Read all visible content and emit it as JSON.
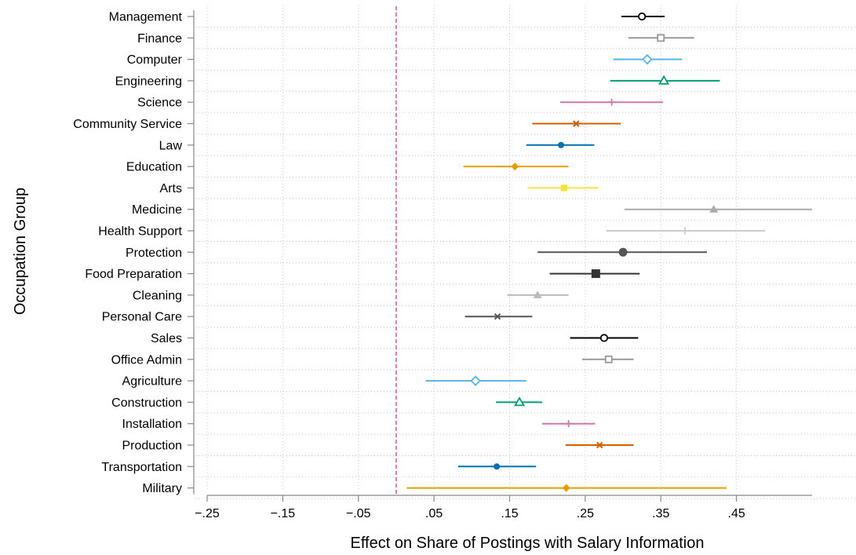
{
  "chart_data": {
    "type": "coefficient_plot",
    "xlabel": "Effect on Share of Postings with Salary Information",
    "ylabel": "Occupation Group",
    "xlim": [
      -0.25,
      0.55
    ],
    "x_ticks": [
      {
        "value": -0.25,
        "label": "−.25"
      },
      {
        "value": -0.15,
        "label": "−.15"
      },
      {
        "value": -0.05,
        "label": "−.05"
      },
      {
        "value": 0.05,
        "label": ".05"
      },
      {
        "value": 0.15,
        "label": ".15"
      },
      {
        "value": 0.25,
        "label": ".25"
      },
      {
        "value": 0.35,
        "label": ".35"
      },
      {
        "value": 0.45,
        "label": ".45"
      }
    ],
    "reference_line": {
      "x": 0,
      "color": "#d6609a",
      "style": "dashed"
    },
    "grid": true,
    "points": [
      {
        "category": "Management",
        "estimate": 0.325,
        "ci_low": 0.298,
        "ci_high": 0.355,
        "marker": "circle-open",
        "color": "#000000"
      },
      {
        "category": "Finance",
        "estimate": 0.35,
        "ci_low": 0.307,
        "ci_high": 0.394,
        "marker": "square-open",
        "color": "#999999"
      },
      {
        "category": "Computer",
        "estimate": 0.332,
        "ci_low": 0.287,
        "ci_high": 0.378,
        "marker": "diamond-open",
        "color": "#56b4e9"
      },
      {
        "category": "Engineering",
        "estimate": 0.354,
        "ci_low": 0.283,
        "ci_high": 0.428,
        "marker": "triangle-open",
        "color": "#009e73"
      },
      {
        "category": "Science",
        "estimate": 0.285,
        "ci_low": 0.217,
        "ci_high": 0.353,
        "marker": "plus",
        "color": "#cc79a7"
      },
      {
        "category": "Community Service",
        "estimate": 0.238,
        "ci_low": 0.18,
        "ci_high": 0.297,
        "marker": "x",
        "color": "#d55e00"
      },
      {
        "category": "Law",
        "estimate": 0.218,
        "ci_low": 0.172,
        "ci_high": 0.262,
        "marker": "circle-filled",
        "color": "#0072b2"
      },
      {
        "category": "Education",
        "estimate": 0.157,
        "ci_low": 0.089,
        "ci_high": 0.228,
        "marker": "diamond-filled",
        "color": "#e69f00"
      },
      {
        "category": "Arts",
        "estimate": 0.222,
        "ci_low": 0.174,
        "ci_high": 0.268,
        "marker": "square-filled",
        "color": "#f0e442"
      },
      {
        "category": "Medicine",
        "estimate": 0.42,
        "ci_low": 0.302,
        "ci_high": 0.55,
        "marker": "triangle-filled",
        "color": "#aaaaaa"
      },
      {
        "category": "Health Support",
        "estimate": 0.382,
        "ci_low": 0.278,
        "ci_high": 0.488,
        "marker": "plus",
        "color": "#cccccc"
      },
      {
        "category": "Protection",
        "estimate": 0.3,
        "ci_low": 0.187,
        "ci_high": 0.411,
        "marker": "circle-filled-large",
        "color": "#555555"
      },
      {
        "category": "Food Preparation",
        "estimate": 0.264,
        "ci_low": 0.203,
        "ci_high": 0.322,
        "marker": "square-filled-large",
        "color": "#333333"
      },
      {
        "category": "Cleaning",
        "estimate": 0.187,
        "ci_low": 0.147,
        "ci_high": 0.228,
        "marker": "triangle-filled",
        "color": "#bbbbbb"
      },
      {
        "category": "Personal Care",
        "estimate": 0.134,
        "ci_low": 0.091,
        "ci_high": 0.18,
        "marker": "x",
        "color": "#555555"
      },
      {
        "category": "Sales",
        "estimate": 0.275,
        "ci_low": 0.23,
        "ci_high": 0.32,
        "marker": "circle-open",
        "color": "#000000"
      },
      {
        "category": "Office Admin",
        "estimate": 0.281,
        "ci_low": 0.246,
        "ci_high": 0.314,
        "marker": "square-open",
        "color": "#999999"
      },
      {
        "category": "Agriculture",
        "estimate": 0.105,
        "ci_low": 0.039,
        "ci_high": 0.172,
        "marker": "diamond-open",
        "color": "#56b4e9"
      },
      {
        "category": "Construction",
        "estimate": 0.163,
        "ci_low": 0.132,
        "ci_high": 0.193,
        "marker": "triangle-open",
        "color": "#009e73"
      },
      {
        "category": "Installation",
        "estimate": 0.228,
        "ci_low": 0.193,
        "ci_high": 0.263,
        "marker": "plus",
        "color": "#cc79a7"
      },
      {
        "category": "Production",
        "estimate": 0.269,
        "ci_low": 0.224,
        "ci_high": 0.314,
        "marker": "x",
        "color": "#d55e00"
      },
      {
        "category": "Transportation",
        "estimate": 0.133,
        "ci_low": 0.082,
        "ci_high": 0.185,
        "marker": "circle-filled",
        "color": "#0072b2"
      },
      {
        "category": "Military",
        "estimate": 0.225,
        "ci_low": 0.014,
        "ci_high": 0.437,
        "marker": "diamond-filled",
        "color": "#e69f00"
      }
    ]
  }
}
